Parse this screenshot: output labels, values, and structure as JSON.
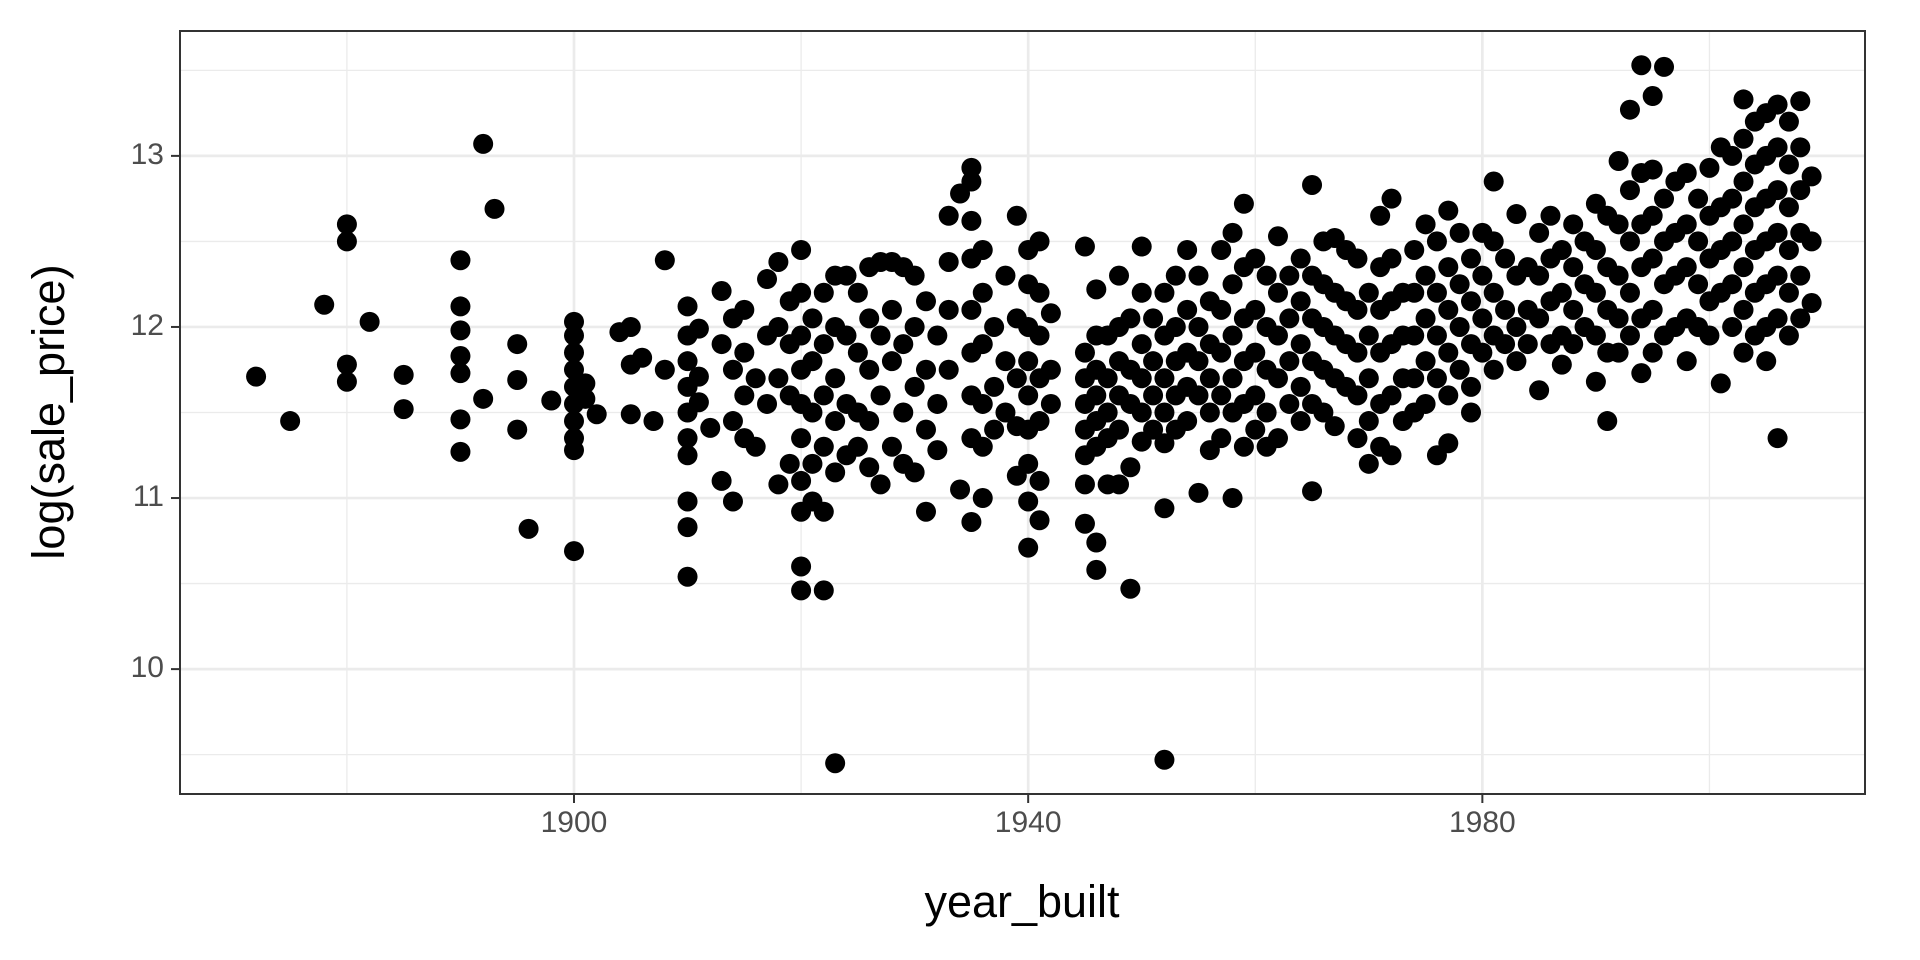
{
  "chart_data": {
    "type": "scatter",
    "x_label": "year_built",
    "y_label": "log(sale_price)",
    "color": "#000000",
    "grid": true,
    "xlim": [
      1865.3,
      2013.7
    ],
    "ylim": [
      9.27,
      13.73
    ],
    "xticks": [
      1900,
      1940,
      1980
    ],
    "yticks": [
      10,
      11,
      12,
      13
    ],
    "x_minor_ticks": [
      1880,
      1920,
      1960,
      2000
    ],
    "y_minor_ticks": [
      9.5,
      10.5,
      11.5,
      12.5,
      13.5
    ],
    "x": [
      1872,
      1875,
      1878,
      1880,
      1880,
      1880,
      1880,
      1882,
      1885,
      1885,
      1890,
      1890,
      1890,
      1890,
      1890,
      1890,
      1890,
      1892,
      1892,
      1893,
      1895,
      1895,
      1895,
      1896,
      1898,
      1900,
      1900,
      1900,
      1900,
      1900,
      1900,
      1900,
      1900,
      1900,
      1900,
      1901,
      1901,
      1902,
      1904,
      1905,
      1905,
      1905,
      1906,
      1907,
      1908,
      1908,
      1910,
      1910,
      1910,
      1910,
      1910,
      1910,
      1910,
      1910,
      1910,
      1910,
      1911,
      1911,
      1911,
      1912,
      1913,
      1913,
      1913,
      1914,
      1914,
      1914,
      1914,
      1915,
      1915,
      1915,
      1915,
      1916,
      1916,
      1917,
      1917,
      1917,
      1918,
      1918,
      1918,
      1918,
      1919,
      1919,
      1919,
      1919,
      1920,
      1920,
      1920,
      1920,
      1920,
      1920,
      1920,
      1920,
      1920,
      1920,
      1921,
      1921,
      1921,
      1921,
      1921,
      1922,
      1922,
      1922,
      1922,
      1922,
      1922,
      1923,
      1923,
      1923,
      1923,
      1923,
      1923,
      1924,
      1924,
      1924,
      1924,
      1925,
      1925,
      1925,
      1925,
      1926,
      1926,
      1926,
      1926,
      1926,
      1927,
      1927,
      1927,
      1927,
      1928,
      1928,
      1928,
      1928,
      1929,
      1929,
      1929,
      1929,
      1930,
      1930,
      1930,
      1930,
      1931,
      1931,
      1931,
      1931,
      1932,
      1932,
      1932,
      1933,
      1933,
      1933,
      1933,
      1934,
      1934,
      1935,
      1935,
      1935,
      1935,
      1935,
      1935,
      1935,
      1935,
      1935,
      1936,
      1936,
      1936,
      1936,
      1936,
      1936,
      1937,
      1937,
      1937,
      1938,
      1938,
      1938,
      1939,
      1939,
      1939,
      1939,
      1939,
      1940,
      1940,
      1940,
      1940,
      1940,
      1940,
      1940,
      1940,
      1940,
      1941,
      1941,
      1941,
      1941,
      1941,
      1941,
      1941,
      1942,
      1942,
      1942,
      1945,
      1945,
      1945,
      1945,
      1945,
      1945,
      1945,
      1945,
      1946,
      1946,
      1946,
      1946,
      1946,
      1946,
      1946,
      1946,
      1947,
      1947,
      1947,
      1947,
      1947,
      1948,
      1948,
      1948,
      1948,
      1948,
      1948,
      1949,
      1949,
      1949,
      1949,
      1949,
      1950,
      1950,
      1950,
      1950,
      1950,
      1950,
      1951,
      1951,
      1951,
      1951,
      1952,
      1952,
      1952,
      1952,
      1952,
      1952,
      1952,
      1953,
      1953,
      1953,
      1953,
      1953,
      1954,
      1954,
      1954,
      1954,
      1954,
      1955,
      1955,
      1955,
      1955,
      1955,
      1956,
      1956,
      1956,
      1956,
      1956,
      1957,
      1957,
      1957,
      1957,
      1957,
      1958,
      1958,
      1958,
      1958,
      1958,
      1958,
      1959,
      1959,
      1959,
      1959,
      1959,
      1959,
      1960,
      1960,
      1960,
      1960,
      1960,
      1961,
      1961,
      1961,
      1961,
      1961,
      1962,
      1962,
      1962,
      1962,
      1962,
      1963,
      1963,
      1963,
      1963,
      1964,
      1964,
      1964,
      1964,
      1964,
      1965,
      1965,
      1965,
      1965,
      1965,
      1965,
      1966,
      1966,
      1966,
      1966,
      1966,
      1967,
      1967,
      1967,
      1967,
      1967,
      1968,
      1968,
      1968,
      1968,
      1969,
      1969,
      1969,
      1969,
      1969,
      1970,
      1970,
      1970,
      1970,
      1970,
      1971,
      1971,
      1971,
      1971,
      1971,
      1971,
      1972,
      1972,
      1972,
      1972,
      1972,
      1972,
      1973,
      1973,
      1973,
      1973,
      1974,
      1974,
      1974,
      1974,
      1974,
      1975,
      1975,
      1975,
      1975,
      1975,
      1976,
      1976,
      1976,
      1976,
      1976,
      1977,
      1977,
      1977,
      1977,
      1977,
      1977,
      1978,
      1978,
      1978,
      1978,
      1979,
      1979,
      1979,
      1979,
      1979,
      1980,
      1980,
      1980,
      1980,
      1981,
      1981,
      1981,
      1981,
      1981,
      1982,
      1982,
      1982,
      1983,
      1983,
      1983,
      1983,
      1984,
      1984,
      1984,
      1985,
      1985,
      1985,
      1985,
      1986,
      1986,
      1986,
      1986,
      1987,
      1987,
      1987,
      1987,
      1988,
      1988,
      1988,
      1988,
      1989,
      1989,
      1989,
      1990,
      1990,
      1990,
      1990,
      1990,
      1991,
      1991,
      1991,
      1991,
      1991,
      1992,
      1992,
      1992,
      1992,
      1992,
      1993,
      1993,
      1993,
      1993,
      1993,
      1994,
      1994,
      1994,
      1994,
      1994,
      1994,
      1995,
      1995,
      1995,
      1995,
      1995,
      1995,
      1996,
      1996,
      1996,
      1996,
      1996,
      1997,
      1997,
      1997,
      1997,
      1998,
      1998,
      1998,
      1998,
      1998,
      1999,
      1999,
      1999,
      1999,
      2000,
      2000,
      2000,
      2000,
      2000,
      2001,
      2001,
      2001,
      2001,
      2001,
      2002,
      2002,
      2002,
      2002,
      2002,
      2003,
      2003,
      2003,
      2003,
      2003,
      2003,
      2003,
      2004,
      2004,
      2004,
      2004,
      2004,
      2004,
      2005,
      2005,
      2005,
      2005,
      2005,
      2005,
      2005,
      2006,
      2006,
      2006,
      2006,
      2006,
      2006,
      2006,
      2007,
      2007,
      2007,
      2007,
      2007,
      2007,
      2008,
      2008,
      2008,
      2008,
      2008,
      2008,
      2009,
      2009,
      2009
    ],
    "values": [
      11.71,
      11.45,
      12.13,
      12.6,
      12.5,
      11.78,
      11.68,
      12.03,
      11.72,
      11.52,
      12.39,
      12.12,
      11.98,
      11.83,
      11.73,
      11.46,
      11.27,
      13.07,
      11.58,
      12.69,
      11.9,
      11.69,
      11.4,
      10.82,
      11.57,
      12.03,
      11.95,
      11.85,
      11.75,
      11.65,
      11.55,
      11.45,
      11.35,
      11.28,
      10.69,
      11.67,
      11.58,
      11.49,
      11.97,
      12.0,
      11.78,
      11.49,
      11.82,
      11.45,
      12.39,
      11.75,
      12.12,
      11.95,
      11.8,
      11.65,
      11.5,
      11.35,
      11.25,
      10.98,
      10.83,
      10.54,
      11.99,
      11.71,
      11.56,
      11.41,
      12.21,
      11.9,
      11.1,
      12.05,
      11.75,
      11.45,
      10.98,
      12.1,
      11.85,
      11.6,
      11.35,
      11.7,
      11.3,
      12.28,
      11.95,
      11.55,
      12.38,
      12.0,
      11.7,
      11.08,
      12.15,
      11.9,
      11.6,
      11.2,
      12.45,
      12.2,
      11.95,
      11.75,
      11.55,
      11.35,
      11.1,
      10.92,
      10.6,
      10.46,
      12.05,
      11.8,
      11.5,
      11.2,
      10.98,
      12.2,
      11.9,
      11.6,
      11.3,
      10.92,
      10.46,
      12.3,
      12.0,
      11.7,
      11.45,
      11.15,
      9.45,
      12.3,
      11.95,
      11.55,
      11.25,
      12.2,
      11.85,
      11.5,
      11.3,
      12.35,
      12.05,
      11.75,
      11.45,
      11.18,
      12.38,
      11.95,
      11.6,
      11.08,
      12.38,
      12.1,
      11.8,
      11.3,
      12.35,
      11.9,
      11.5,
      11.2,
      12.3,
      12.0,
      11.65,
      11.15,
      12.15,
      11.75,
      11.4,
      10.92,
      11.95,
      11.55,
      11.28,
      12.65,
      12.38,
      12.1,
      11.75,
      12.78,
      11.05,
      12.93,
      12.85,
      12.62,
      12.4,
      12.1,
      11.85,
      11.6,
      11.35,
      10.86,
      12.45,
      12.2,
      11.9,
      11.55,
      11.3,
      11.0,
      12.0,
      11.65,
      11.4,
      12.3,
      11.8,
      11.5,
      12.65,
      12.05,
      11.7,
      11.42,
      11.13,
      12.45,
      12.25,
      12.0,
      11.8,
      11.6,
      11.4,
      11.2,
      10.98,
      10.71,
      12.5,
      12.2,
      11.95,
      11.7,
      11.45,
      11.1,
      10.87,
      12.08,
      11.75,
      11.55,
      12.47,
      11.85,
      11.7,
      11.55,
      11.4,
      11.25,
      11.08,
      10.85,
      12.22,
      11.95,
      11.75,
      11.6,
      11.45,
      11.3,
      10.74,
      10.58,
      11.95,
      11.7,
      11.5,
      11.35,
      11.08,
      12.3,
      12.0,
      11.8,
      11.6,
      11.4,
      11.08,
      12.05,
      11.75,
      11.55,
      11.18,
      10.47,
      12.47,
      12.2,
      11.9,
      11.7,
      11.5,
      11.33,
      12.05,
      11.8,
      11.6,
      11.4,
      12.2,
      11.95,
      11.7,
      11.5,
      11.32,
      10.94,
      9.47,
      12.3,
      12.0,
      11.8,
      11.6,
      11.4,
      12.45,
      12.1,
      11.85,
      11.65,
      11.45,
      12.3,
      12.0,
      11.8,
      11.6,
      11.03,
      12.15,
      11.9,
      11.7,
      11.5,
      11.28,
      12.45,
      12.1,
      11.85,
      11.6,
      11.35,
      12.55,
      12.25,
      11.95,
      11.7,
      11.5,
      11.0,
      12.72,
      12.35,
      12.05,
      11.8,
      11.55,
      11.3,
      12.4,
      12.1,
      11.85,
      11.6,
      11.4,
      12.3,
      12.0,
      11.75,
      11.5,
      11.3,
      12.53,
      12.2,
      11.95,
      11.7,
      11.35,
      12.3,
      12.05,
      11.8,
      11.55,
      12.4,
      12.15,
      11.9,
      11.65,
      11.45,
      12.83,
      12.3,
      12.05,
      11.8,
      11.55,
      11.04,
      12.5,
      12.25,
      12.0,
      11.75,
      11.5,
      12.52,
      12.2,
      11.95,
      11.7,
      11.42,
      12.45,
      12.15,
      11.9,
      11.65,
      12.4,
      12.1,
      11.85,
      11.6,
      11.35,
      12.2,
      11.95,
      11.7,
      11.45,
      11.2,
      12.65,
      12.35,
      12.1,
      11.85,
      11.55,
      11.3,
      12.75,
      12.4,
      12.15,
      11.9,
      11.6,
      11.25,
      12.2,
      11.95,
      11.7,
      11.45,
      12.45,
      12.2,
      11.95,
      11.7,
      11.5,
      12.6,
      12.3,
      12.05,
      11.8,
      11.55,
      12.5,
      12.2,
      11.95,
      11.7,
      11.25,
      12.68,
      12.35,
      12.1,
      11.85,
      11.6,
      11.32,
      12.55,
      12.25,
      12.0,
      11.75,
      12.4,
      12.15,
      11.9,
      11.65,
      11.5,
      12.55,
      12.3,
      12.05,
      11.85,
      12.85,
      12.5,
      12.2,
      11.95,
      11.75,
      12.4,
      12.1,
      11.9,
      12.66,
      12.3,
      12.0,
      11.8,
      12.35,
      12.1,
      11.9,
      12.55,
      12.3,
      12.05,
      11.63,
      12.65,
      12.4,
      12.15,
      11.9,
      12.45,
      12.2,
      11.95,
      11.78,
      12.6,
      12.35,
      12.1,
      11.9,
      12.5,
      12.25,
      12.0,
      12.72,
      12.45,
      12.2,
      11.95,
      11.68,
      12.65,
      12.35,
      12.1,
      11.85,
      11.45,
      12.97,
      12.6,
      12.3,
      12.05,
      11.85,
      13.27,
      12.8,
      12.5,
      12.2,
      11.95,
      13.53,
      12.9,
      12.6,
      12.35,
      12.05,
      11.73,
      13.35,
      12.92,
      12.65,
      12.4,
      12.1,
      11.85,
      13.52,
      12.75,
      12.5,
      12.25,
      11.95,
      12.85,
      12.55,
      12.3,
      12.0,
      12.9,
      12.6,
      12.35,
      12.05,
      11.8,
      12.75,
      12.5,
      12.25,
      12.0,
      12.93,
      12.65,
      12.4,
      12.15,
      11.95,
      13.05,
      12.7,
      12.45,
      12.2,
      11.67,
      13.0,
      12.75,
      12.5,
      12.25,
      12.0,
      13.33,
      13.1,
      12.85,
      12.6,
      12.35,
      12.1,
      11.85,
      13.2,
      12.95,
      12.7,
      12.45,
      12.2,
      11.95,
      13.25,
      13.0,
      12.75,
      12.5,
      12.25,
      12.0,
      11.8,
      13.3,
      13.05,
      12.8,
      12.55,
      12.3,
      12.05,
      11.35,
      13.2,
      12.95,
      12.7,
      12.45,
      12.2,
      11.95,
      13.32,
      13.05,
      12.8,
      12.55,
      12.3,
      12.05,
      12.88,
      12.5,
      12.14
    ]
  }
}
